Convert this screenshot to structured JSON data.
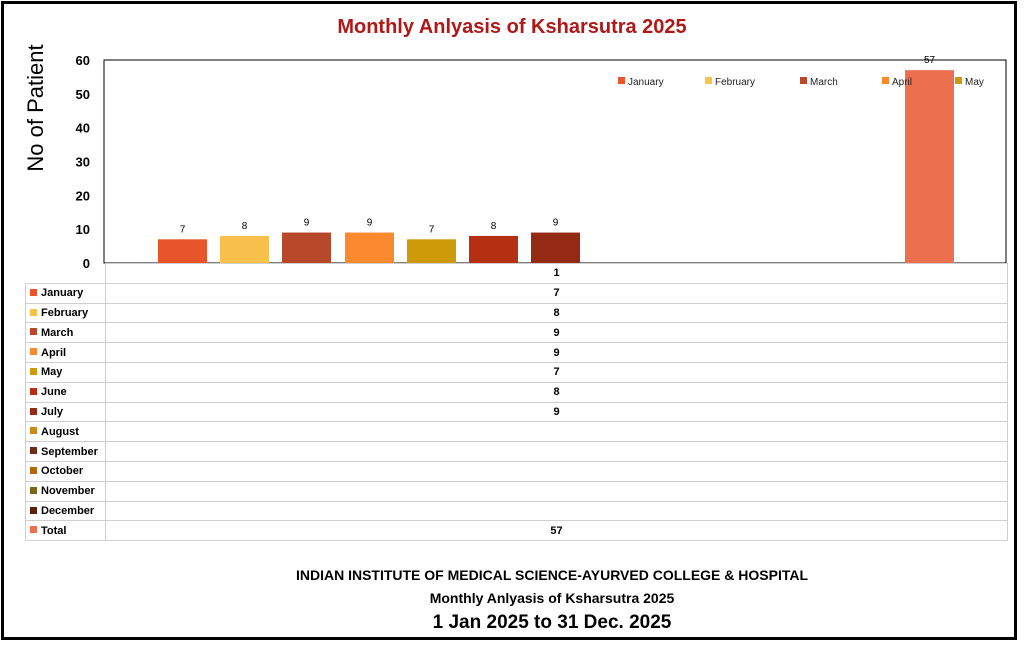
{
  "chart_data": {
    "type": "bar",
    "title": "Monthly Anlyasis of Ksharsutra  2025",
    "ylabel": "No of Patient",
    "ylim": [
      0,
      60
    ],
    "yticks": [
      0,
      10,
      20,
      30,
      40,
      50,
      60
    ],
    "category_label": "1",
    "grid": false,
    "legend_position": "top-right",
    "series": [
      {
        "name": "January",
        "value": 7,
        "color": "#e9552a"
      },
      {
        "name": "February",
        "value": 8,
        "color": "#f9c04c"
      },
      {
        "name": "March",
        "value": 9,
        "color": "#b8482a"
      },
      {
        "name": "April",
        "value": 9,
        "color": "#fb8a2e"
      },
      {
        "name": "May",
        "value": 7,
        "color": "#cf9a0a"
      },
      {
        "name": "June",
        "value": 8,
        "color": "#b52f12"
      },
      {
        "name": "July",
        "value": 9,
        "color": "#952a14"
      },
      {
        "name": "August",
        "value": null,
        "color": "#c98a1a"
      },
      {
        "name": "September",
        "value": null,
        "color": "#6e2c16"
      },
      {
        "name": "October",
        "value": null,
        "color": "#b5660f"
      },
      {
        "name": "November",
        "value": null,
        "color": "#7c6514"
      },
      {
        "name": "December",
        "value": null,
        "color": "#5c1e0e"
      },
      {
        "name": "Total",
        "value": 57,
        "color": "#ec7050"
      }
    ],
    "legend_entries": [
      "January",
      "February",
      "March",
      "April",
      "May"
    ]
  },
  "footer": {
    "institute": "INDIAN INSTITUTE OF MEDICAL SCIENCE-AYURVED COLLEGE & HOSPITAL",
    "subtitle": "Monthly Anlyasis of Ksharsutra  2025",
    "period": "1 Jan 2025 to 31 Dec. 2025"
  }
}
